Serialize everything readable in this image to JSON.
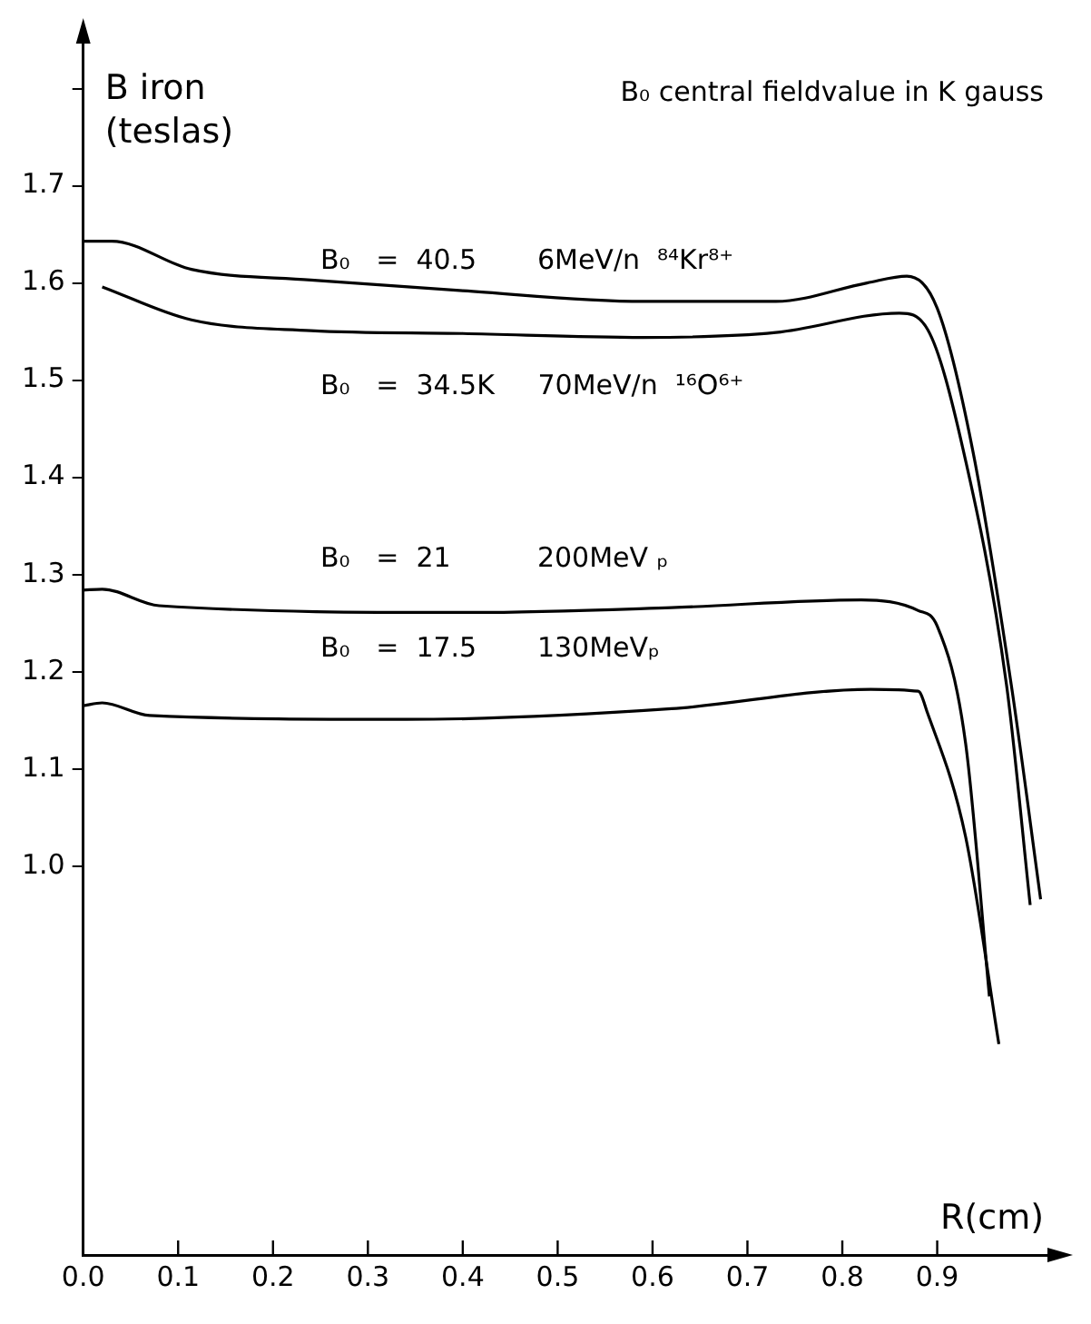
{
  "chart_data": {
    "type": "line",
    "xlabel": "R(cm)",
    "ylabel": "B iron\n(teslas)",
    "annotations": [
      "B₀ central fieldvalue in K gauss",
      "B₀   =  40.5       6MeV/n  ⁸⁴Kr⁸⁺",
      "B₀   =  34.5K     70MeV/n  ¹⁶O⁶⁺",
      "B₀   =  21          200MeV ₚ",
      "B₀   =  17.5       130MeVₚ"
    ],
    "series": [
      {
        "color": "#000000",
        "x": [
          0,
          0.03,
          0.114,
          0.24,
          0.4,
          0.59,
          0.73,
          0.826,
          0.868,
          0.9,
          0.937,
          0.978,
          1.009
        ],
        "values": [
          1.643,
          1.643,
          1.614,
          1.603,
          1.592,
          1.581,
          1.581,
          1.6,
          1.607,
          1.574,
          1.43,
          1.187,
          0.966
        ]
      },
      {
        "color": "#000000",
        "x": [
          0.02,
          0.114,
          0.24,
          0.4,
          0.59,
          0.73,
          0.86,
          0.89,
          0.927,
          0.973,
          0.998
        ],
        "values": [
          1.596,
          1.562,
          1.551,
          1.548,
          1.544,
          1.549,
          1.569,
          1.552,
          1.43,
          1.187,
          0.96
        ]
      },
      {
        "color": "#000000",
        "x": [
          0,
          0.02,
          0.08,
          0.41,
          0.62,
          0.82,
          0.88,
          0.9,
          0.93,
          0.955
        ],
        "values": [
          1.284,
          1.285,
          1.268,
          1.261,
          1.266,
          1.274,
          1.263,
          1.247,
          1.126,
          0.866
        ]
      },
      {
        "color": "#000000",
        "x": [
          0,
          0.02,
          0.07,
          0.34,
          0.62,
          0.83,
          0.88,
          0.89,
          0.93,
          0.965
        ],
        "values": [
          1.165,
          1.168,
          1.155,
          1.151,
          1.162,
          1.182,
          1.18,
          1.157,
          1.03,
          0.817
        ]
      }
    ],
    "xlim": [
      0,
      1.02
    ],
    "ylim": [
      0.6,
      1.85
    ],
    "xticks": [
      {
        "value": 0,
        "label": "0.0"
      },
      0.1,
      0.2,
      0.3,
      0.4,
      0.5,
      0.6,
      0.7,
      0.8,
      0.9
    ],
    "yticks": [
      {
        "value": 1,
        "label": "1.0"
      },
      1.1,
      1.2,
      1.3,
      1.4,
      1.5,
      1.6,
      1.7,
      {
        "value": 1.8,
        "label": null
      }
    ],
    "grid": false,
    "legend": false,
    "marker": "none",
    "line_style": "solid"
  }
}
